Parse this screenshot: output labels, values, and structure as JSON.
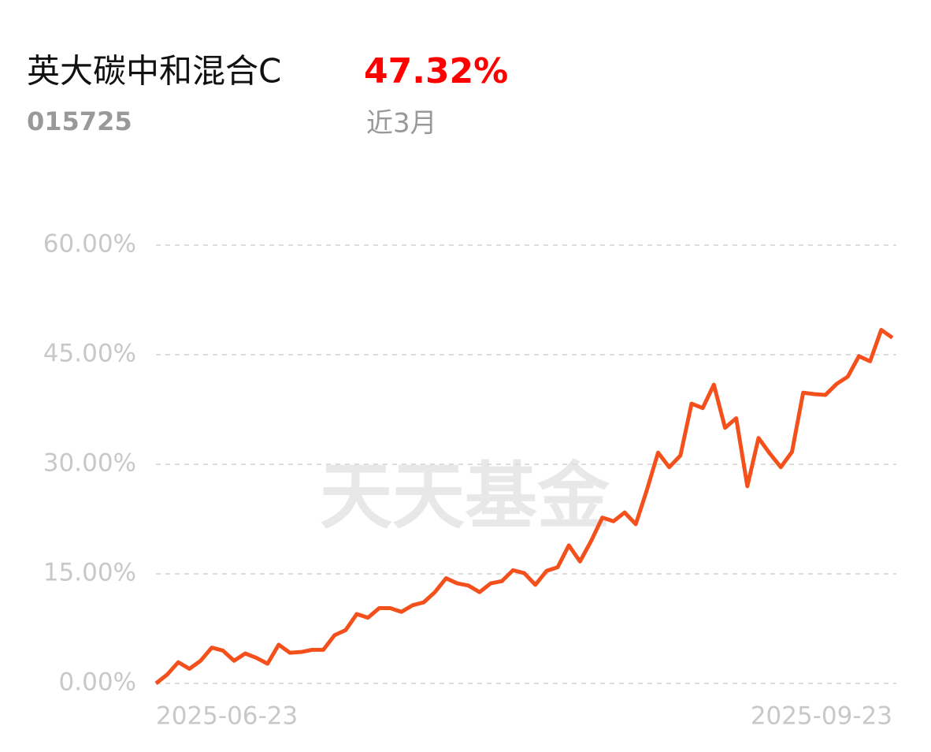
{
  "header": {
    "title": "英大碳中和混合C",
    "code": "015725",
    "return": "47.32%",
    "period": "近3月"
  },
  "chart_data": {
    "type": "line",
    "watermark": "天天基金",
    "categories": [
      "2025-06-23",
      null,
      null,
      null,
      null,
      null,
      null,
      null,
      null,
      null,
      null,
      null,
      null,
      null,
      null,
      null,
      null,
      null,
      null,
      null,
      null,
      null,
      null,
      null,
      null,
      null,
      null,
      null,
      null,
      null,
      null,
      null,
      null,
      null,
      null,
      null,
      null,
      null,
      null,
      null,
      null,
      null,
      null,
      null,
      null,
      null,
      null,
      null,
      null,
      null,
      null,
      null,
      null,
      null,
      null,
      null,
      null,
      null,
      null,
      null,
      null,
      null,
      null,
      null,
      null,
      null,
      "2025-09-23"
    ],
    "series": [
      {
        "color": "#f4501c",
        "values": [
          0,
          1.2,
          2.9,
          2.0,
          3.1,
          4.9,
          4.5,
          3.1,
          4.1,
          3.5,
          2.7,
          5.3,
          4.2,
          4.3,
          4.6,
          4.6,
          6.6,
          7.3,
          9.5,
          9.0,
          10.3,
          10.3,
          9.8,
          10.7,
          11.1,
          12.5,
          14.4,
          13.7,
          13.4,
          12.5,
          13.7,
          14.0,
          15.5,
          15.1,
          13.5,
          15.4,
          15.9,
          18.9,
          16.7,
          19.5,
          22.7,
          22.2,
          23.4,
          21.8,
          26.5,
          31.6,
          29.6,
          31.2,
          38.3,
          37.7,
          40.9,
          35.0,
          36.3,
          27.0,
          33.6,
          31.5,
          29.6,
          31.7,
          39.8,
          39.6,
          39.5,
          41.0,
          42.0,
          44.8,
          44.1,
          48.4,
          47.32
        ]
      }
    ],
    "ylim": [
      0,
      60
    ],
    "yticks": [
      {
        "value": 0,
        "label": "0.00%"
      },
      {
        "value": 15,
        "label": "15.00%"
      },
      {
        "value": 30,
        "label": "30.00%"
      },
      {
        "value": 45,
        "label": "45.00%"
      },
      {
        "value": 60,
        "label": "60.00%"
      }
    ],
    "grid": true
  }
}
